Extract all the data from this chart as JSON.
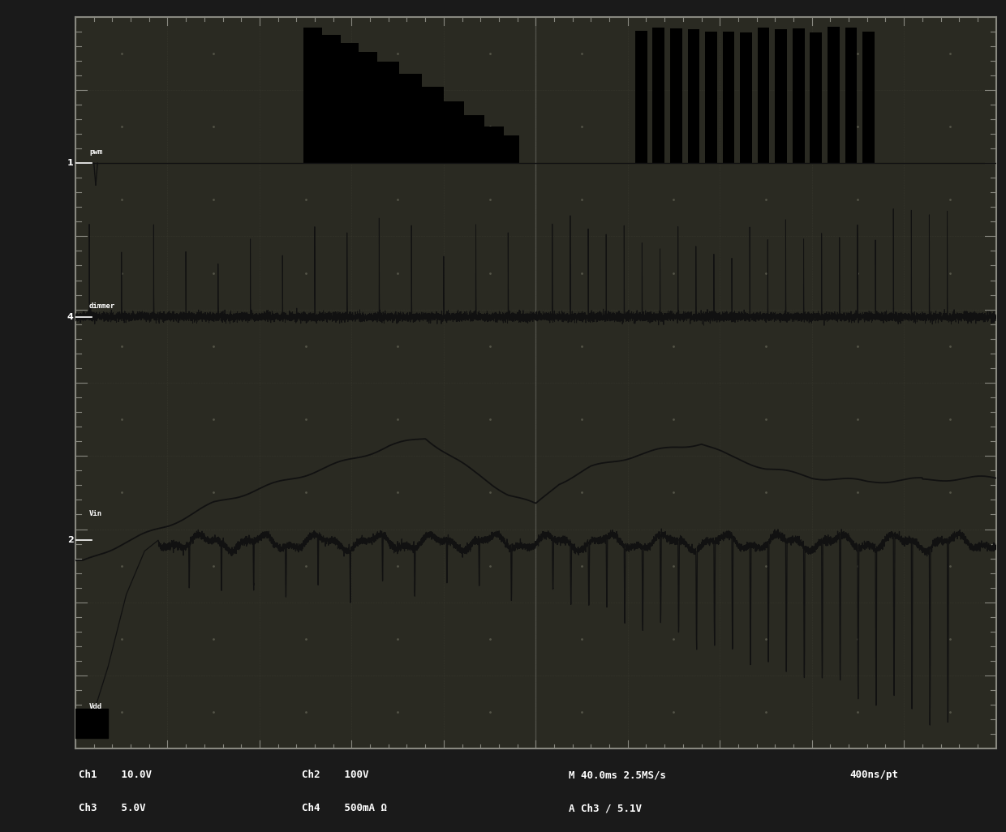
{
  "background_color": "#1a1a1a",
  "plot_bg_color": "#2a2a22",
  "grid_color": "#555548",
  "border_color": "#888880",
  "ch1_base": 8.0,
  "ch1_high": 9.85,
  "ch4_base": 5.9,
  "ch3_base": 3.5,
  "ch2_base": 2.8,
  "ch1_label": "pwm",
  "ch4_label": "dimmer",
  "ch3_label": "Vin",
  "ch2_label": "Vdd",
  "footer1_left": "Ch1    10.0V",
  "footer1_ch2": "Ch2    100V",
  "footer1_time": "M 40.0ms 2.5MS/s",
  "footer1_rate": "400ns/pt",
  "footer2_left": "Ch3    5.0V",
  "footer2_ch4": "Ch4    500mA Ω",
  "footer2_trig": "A Ch3 / 5.1V",
  "marker1": "1",
  "marker4": "4",
  "marker2": "2"
}
